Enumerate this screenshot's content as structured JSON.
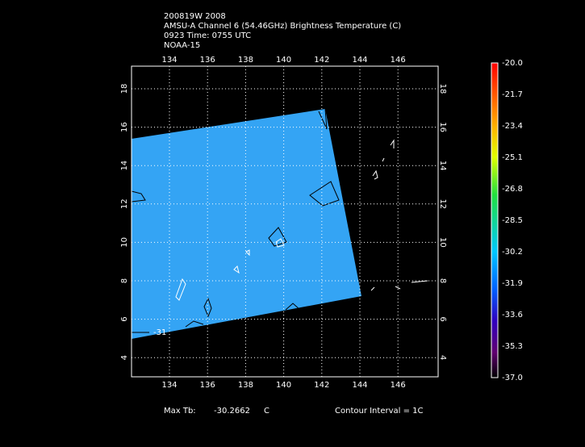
{
  "header": {
    "lines": [
      "200819W 2008",
      "AMSU-A Channel 6 (54.46GHz) Brightness Temperature (C)",
      "0923 Time: 0755 UTC",
      "NOAA-15"
    ]
  },
  "map": {
    "lon_ticks": [
      134,
      136,
      138,
      140,
      142,
      144,
      146
    ],
    "lat_ticks": [
      18,
      16,
      14,
      12,
      10,
      8,
      6,
      4
    ],
    "contour_label": "-31"
  },
  "colorbar": {
    "labels": [
      "-20.0",
      "-21.7",
      "-23.4",
      "-25.1",
      "-26.8",
      "-28.5",
      "-30.2",
      "-31.9",
      "-33.6",
      "-35.3",
      "-37.0"
    ]
  },
  "footer": {
    "max_label": "Max Tb:",
    "max_value": "-30.2662",
    "max_unit": "C",
    "contour_interval": "Contour Interval = 1C"
  }
}
